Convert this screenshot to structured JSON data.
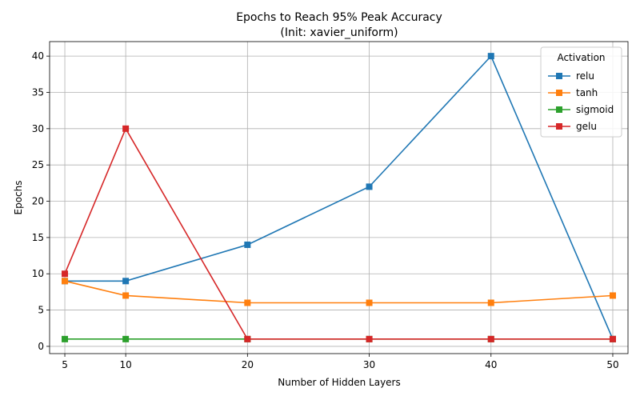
{
  "chart_data": {
    "type": "line",
    "title": "Epochs to Reach 95% Peak Accuracy",
    "subtitle": "(Init: xavier_uniform)",
    "xlabel": "Number of Hidden Layers",
    "ylabel": "Epochs",
    "x": [
      5,
      10,
      20,
      30,
      40,
      50
    ],
    "xticks": [
      5,
      10,
      20,
      30,
      40,
      50
    ],
    "yticks": [
      0,
      5,
      10,
      15,
      20,
      25,
      30,
      35,
      40
    ],
    "xlim": [
      3.75,
      51.25
    ],
    "ylim": [
      -1,
      42
    ],
    "grid": true,
    "marker": "square",
    "legend": {
      "title": "Activation",
      "placement": "top-right"
    },
    "series": [
      {
        "name": "relu",
        "color": "#1f77b4",
        "values": [
          9,
          9,
          14,
          22,
          40,
          1
        ]
      },
      {
        "name": "tanh",
        "color": "#ff7f0e",
        "values": [
          9,
          7,
          6,
          6,
          6,
          7
        ]
      },
      {
        "name": "sigmoid",
        "color": "#2ca02c",
        "values": [
          1,
          1,
          1,
          1,
          1,
          1
        ]
      },
      {
        "name": "gelu",
        "color": "#d62728",
        "values": [
          10,
          30,
          1,
          1,
          1,
          1
        ]
      }
    ]
  }
}
